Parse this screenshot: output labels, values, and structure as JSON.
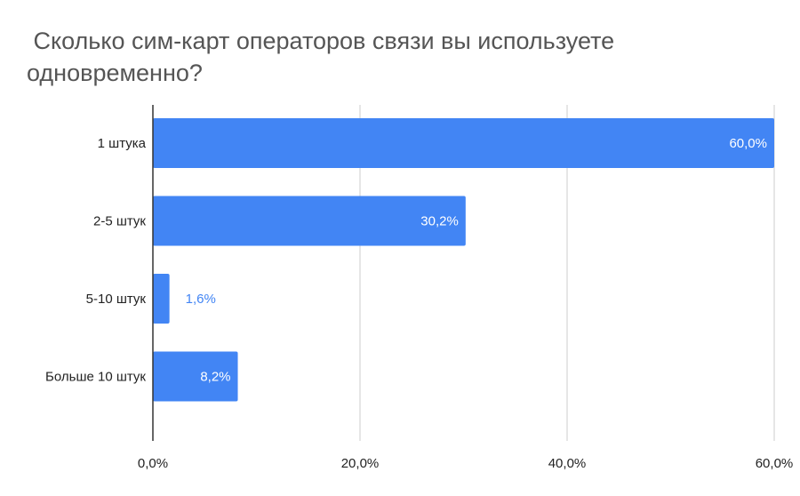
{
  "chart_data": {
    "type": "bar",
    "orientation": "horizontal",
    "title": " Сколько сим-карт операторов связи вы используете одновременно?",
    "categories": [
      "1 штука",
      "2-5 штук",
      "5-10 штук",
      "Больше 10 штук"
    ],
    "values": [
      60.0,
      30.2,
      1.6,
      8.2
    ],
    "data_labels": [
      "60,0%",
      "30,2%",
      "1,6%",
      "8,2%"
    ],
    "xlim": [
      0,
      60
    ],
    "xticks": [
      0,
      20,
      40,
      60
    ],
    "xtick_labels": [
      "0,0%",
      "20,0%",
      "40,0%",
      "60,0%"
    ],
    "grid": true,
    "legend": "none",
    "colors": {
      "bar": "#4285f4",
      "grid": "#cccccc",
      "axis": "#333333",
      "label_inside": "#ffffff",
      "label_outside": "#4285f4"
    }
  }
}
